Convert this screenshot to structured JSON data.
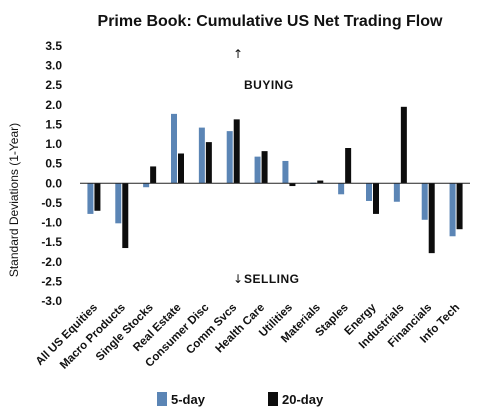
{
  "chart_data": {
    "type": "bar",
    "title": "Prime Book: Cumulative US Net Trading Flow",
    "ylabel": "Standard Deviations (1-Year)",
    "xlabel": "",
    "ylim": [
      -3.0,
      3.5
    ],
    "yticks": [
      "3.5",
      "3.0",
      "2.5",
      "2.0",
      "1.5",
      "1.0",
      "0.5",
      "0.0",
      "-0.5",
      "-1.0",
      "-1.5",
      "-2.0",
      "-2.5",
      "-3.0"
    ],
    "categories": [
      "All US Equities",
      "Macro Products",
      "Single Stocks",
      "Real Estate",
      "Consumer Disc",
      "Comm Svcs",
      "Health Care",
      "Utilities",
      "Materials",
      "Staples",
      "Energy",
      "Industrials",
      "Financials",
      "Info Tech"
    ],
    "series": [
      {
        "name": "5-day",
        "color": "#5b85b5",
        "values": [
          -0.78,
          -1.02,
          -0.1,
          1.77,
          1.42,
          1.33,
          0.68,
          0.57,
          0.0,
          -0.28,
          -0.45,
          -0.47,
          -0.93,
          -1.35
        ]
      },
      {
        "name": "20-day",
        "color": "#0d0d0d",
        "values": [
          -0.7,
          -1.65,
          0.43,
          0.76,
          1.05,
          1.63,
          0.82,
          -0.07,
          0.07,
          0.9,
          -0.78,
          1.95,
          -1.78,
          -1.17
        ]
      }
    ],
    "annotations": {
      "buying": "BUYING",
      "selling": "SELLING",
      "up_arrow": "↑",
      "down_arrow": "↓"
    },
    "legend": {
      "position": "bottom"
    },
    "grid": false
  }
}
